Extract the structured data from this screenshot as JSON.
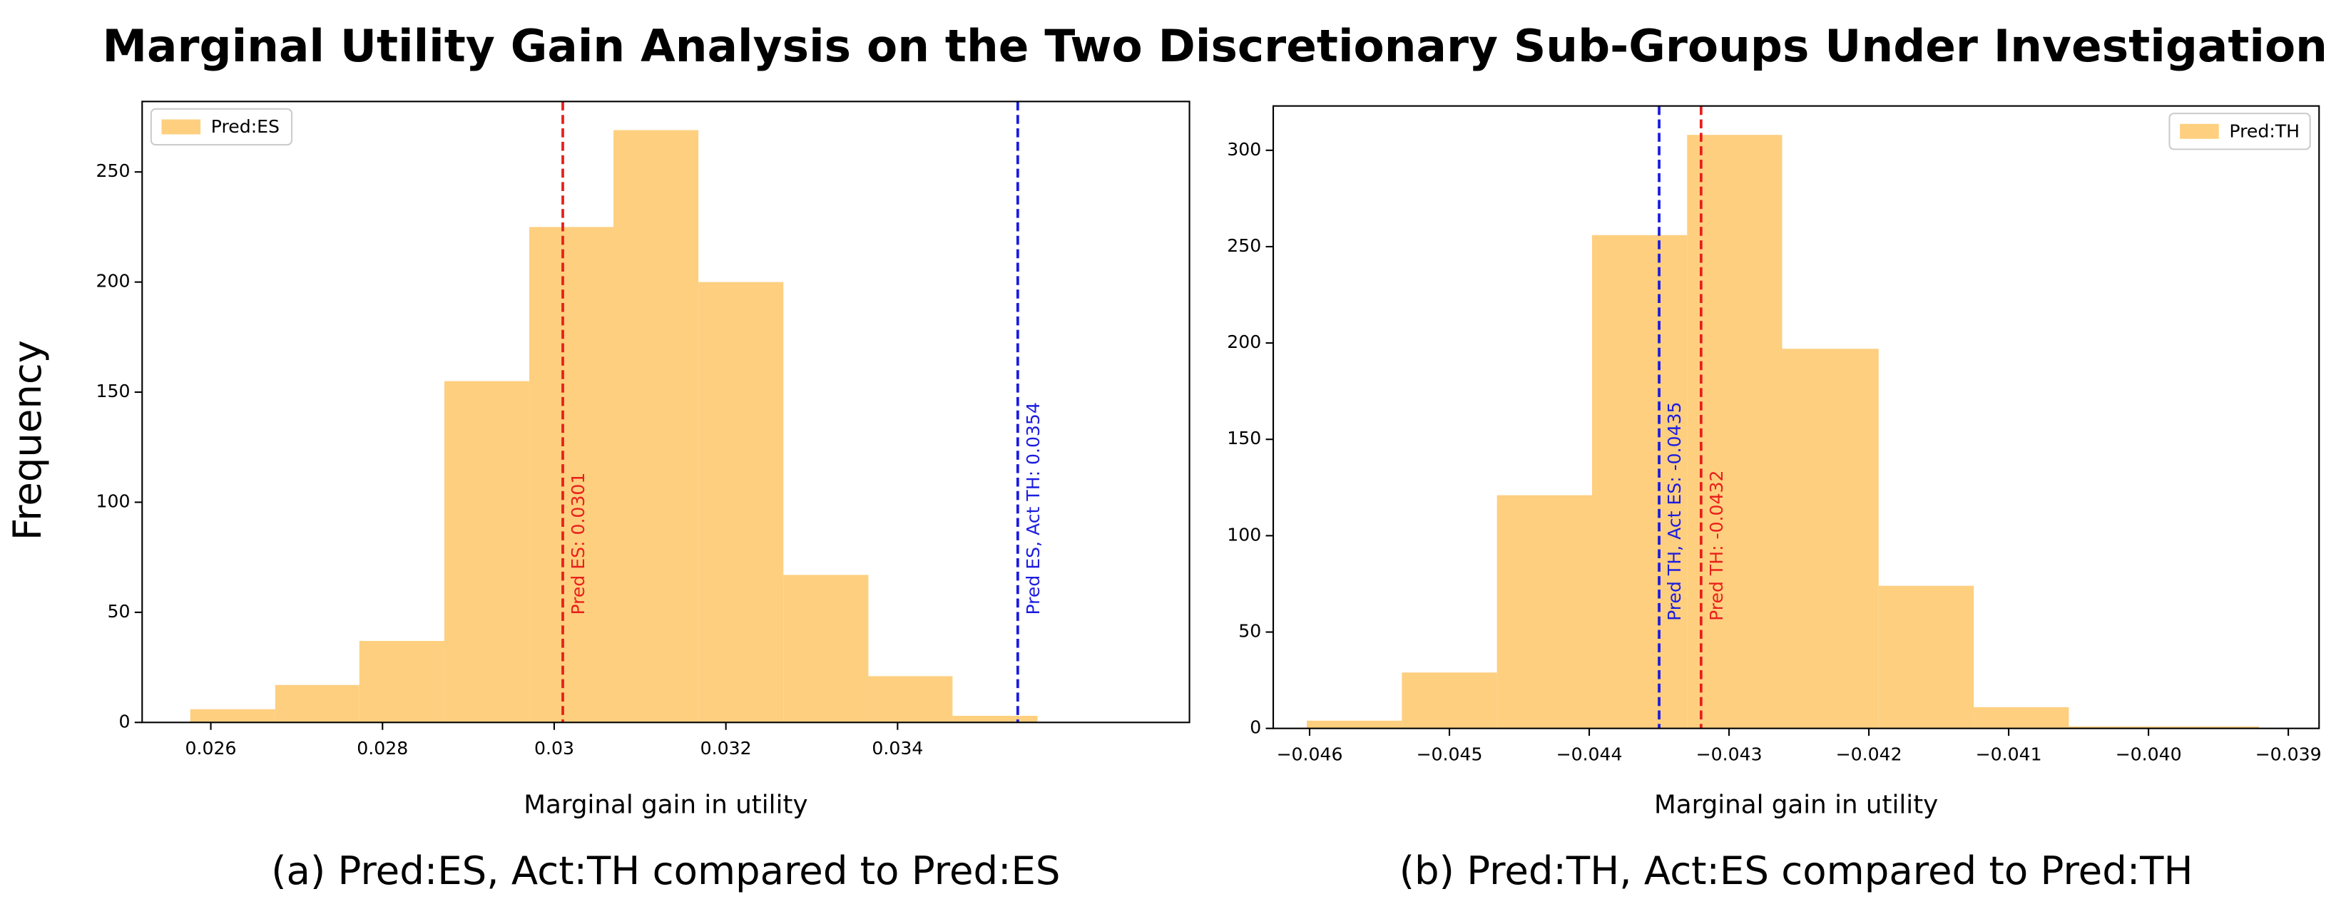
{
  "title": "Marginal Utility Gain Analysis on the Two Discretionary Sub-Groups Under Investigation",
  "ylabel": "Frequency",
  "chart_data": [
    {
      "type": "histogram",
      "xlabel": "Marginal gain in utility",
      "caption": "(a) Pred:ES, Act:TH compared to Pred:ES",
      "legend": "upper left",
      "bins": [
        0.02576,
        0.02675,
        0.02773,
        0.02872,
        0.02971,
        0.03069,
        0.03168,
        0.03267,
        0.03366,
        0.03464,
        0.03563
      ],
      "series": [
        {
          "name": "Pred:ES",
          "color": "#fecf7f",
          "values": [
            6,
            17,
            37,
            155,
            225,
            269,
            200,
            67,
            21,
            3
          ]
        }
      ],
      "vlines": [
        {
          "value": 0.0301,
          "label": "Pred ES: 0.0301",
          "color": "#e8201c"
        },
        {
          "value": 0.0354,
          "label": "Pred ES, Act TH: 0.0354",
          "color": "#1c1ce0"
        }
      ],
      "xlim": [
        0.0252,
        0.0374
      ],
      "xticks": [
        0.026,
        0.028,
        0.03,
        0.032,
        0.034
      ],
      "ylim": [
        0,
        282
      ],
      "yticks": [
        0,
        50,
        100,
        150,
        200,
        250
      ]
    },
    {
      "type": "histogram",
      "xlabel": "Marginal gain in utility",
      "caption": "(b) Pred:TH, Act:ES compared to Pred:TH",
      "legend": "upper right",
      "bins": [
        -0.04602,
        -0.04534,
        -0.04466,
        -0.04398,
        -0.0433,
        -0.04262,
        -0.04193,
        -0.04125,
        -0.04057,
        -0.03989,
        -0.03921
      ],
      "series": [
        {
          "name": "Pred:TH",
          "color": "#fecf7f",
          "values": [
            4,
            29,
            121,
            256,
            308,
            197,
            74,
            11,
            1,
            1
          ]
        }
      ],
      "vlines": [
        {
          "value": -0.0435,
          "label": "Pred TH, Act ES: -0.0435",
          "color": "#1c1ce0"
        },
        {
          "value": -0.0432,
          "label": "Pred TH: -0.0432",
          "color": "#e8201c"
        }
      ],
      "xlim": [
        -0.04626,
        -0.03878
      ],
      "xticks": [
        {
          "value": -0.046,
          "label": "−0.046"
        },
        {
          "value": -0.045,
          "label": "−0.045"
        },
        {
          "value": -0.044,
          "label": "−0.044"
        },
        {
          "value": -0.043,
          "label": "−0.043"
        },
        {
          "value": -0.042,
          "label": "−0.042"
        },
        {
          "value": -0.041,
          "label": "−0.041"
        },
        {
          "value": -0.04,
          "label": "−0.040"
        },
        {
          "value": -0.039,
          "label": "−0.039"
        }
      ],
      "ylim": [
        0,
        323
      ],
      "yticks": [
        0,
        50,
        100,
        150,
        200,
        250,
        300
      ]
    }
  ]
}
